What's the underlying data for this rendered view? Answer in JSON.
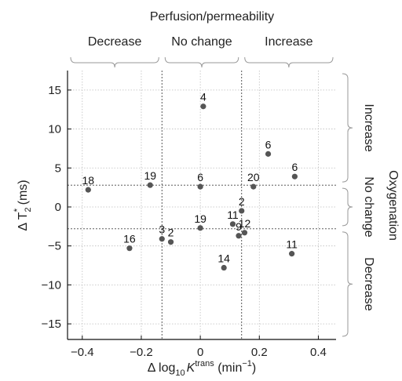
{
  "chart_data": {
    "type": "scatter",
    "title": "Perfusion/permeability",
    "xlabel": "Δ log10 Ktrans (min−1)",
    "xlabel_parts": {
      "prefix": "Δ log",
      "sub": "10",
      "var": "K",
      "sup": "trans",
      "unit": " (min",
      "unit_sup": "−1",
      "unit_end": ")"
    },
    "ylabel": "Δ T2* (ms)",
    "ylabel_parts": {
      "prefix": "Δ T",
      "sub": "2",
      "sup": "*",
      "unit": " (ms)"
    },
    "right_label": "Oxygenation",
    "xlim": [
      -0.45,
      0.46
    ],
    "ylim": [
      -17,
      17.5
    ],
    "xticks": [
      -0.4,
      -0.2,
      0,
      0.2,
      0.4
    ],
    "xtick_labels": [
      "−0.4",
      "−0.2",
      "0",
      "0.2",
      "0.4"
    ],
    "yticks": [
      -15,
      -10,
      -5,
      0,
      5,
      10,
      15
    ],
    "ytick_labels": [
      "−15",
      "−10",
      "−5",
      "0",
      "5",
      "10",
      "15"
    ],
    "grid": true,
    "thresholds": {
      "x": [
        -0.13,
        0.14
      ],
      "y": [
        2.8,
        -2.8
      ]
    },
    "x_groups": [
      "Decrease",
      "No change",
      "Increase"
    ],
    "y_groups": [
      "Increase",
      "No change",
      "Decrease"
    ],
    "points": [
      {
        "x": -0.38,
        "y": 2.2,
        "label": "18"
      },
      {
        "x": -0.17,
        "y": 2.8,
        "label": "19"
      },
      {
        "x": 0.01,
        "y": 12.9,
        "label": "4"
      },
      {
        "x": 0.0,
        "y": 2.6,
        "label": "6"
      },
      {
        "x": 0.23,
        "y": 6.8,
        "label": "6"
      },
      {
        "x": 0.32,
        "y": 3.9,
        "label": "6"
      },
      {
        "x": 0.18,
        "y": 2.6,
        "label": "20"
      },
      {
        "x": 0.14,
        "y": -0.5,
        "label": "2"
      },
      {
        "x": 0.11,
        "y": -2.2,
        "label": "11"
      },
      {
        "x": 0.15,
        "y": -3.3,
        "label": "12"
      },
      {
        "x": 0.13,
        "y": -3.7,
        "label": "9"
      },
      {
        "x": 0.0,
        "y": -2.7,
        "label": "19"
      },
      {
        "x": -0.13,
        "y": -4.1,
        "label": "3"
      },
      {
        "x": -0.1,
        "y": -4.5,
        "label": "2"
      },
      {
        "x": -0.24,
        "y": -5.3,
        "label": "16"
      },
      {
        "x": 0.08,
        "y": -7.8,
        "label": "14"
      },
      {
        "x": 0.31,
        "y": -6.0,
        "label": "11"
      }
    ]
  }
}
